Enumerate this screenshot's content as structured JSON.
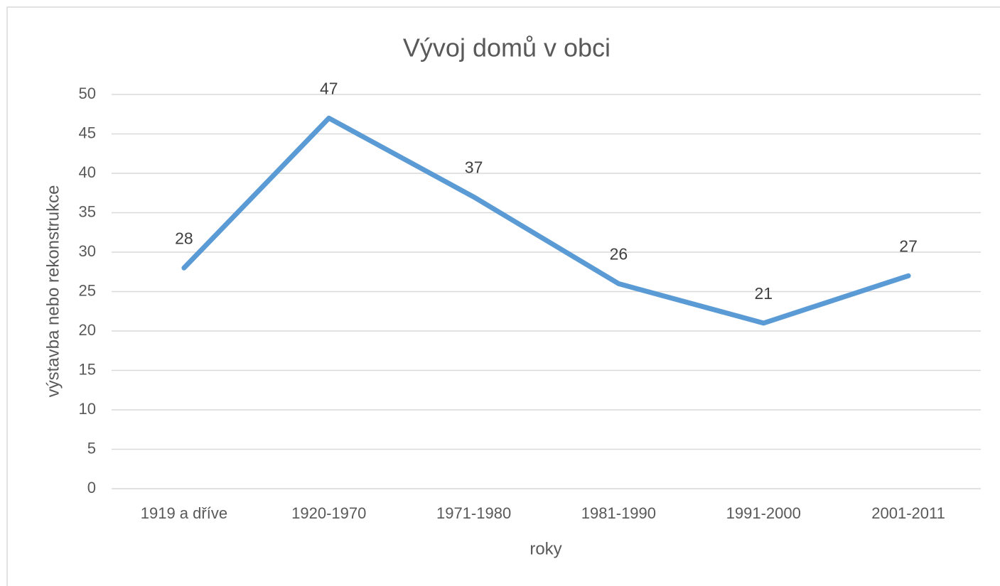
{
  "chart_data": {
    "type": "line",
    "title": "Vývoj domů v obci",
    "x_label": "roky",
    "y_label": "výstavba nebo rekonstrukce",
    "categories": [
      "1919 a dříve",
      "1920-1970",
      "1971-1980",
      "1981-1990",
      "1991-2000",
      "2001-2011"
    ],
    "series": [
      {
        "name": "výstavba nebo rekonstrukce",
        "color": "#5b9bd5",
        "values": [
          28,
          47,
          37,
          26,
          21,
          27
        ]
      }
    ],
    "ylim": [
      0,
      50
    ],
    "yticks": [
      0,
      5,
      10,
      15,
      20,
      25,
      30,
      35,
      40,
      45,
      50
    ],
    "grid": true,
    "data_labels": true
  }
}
